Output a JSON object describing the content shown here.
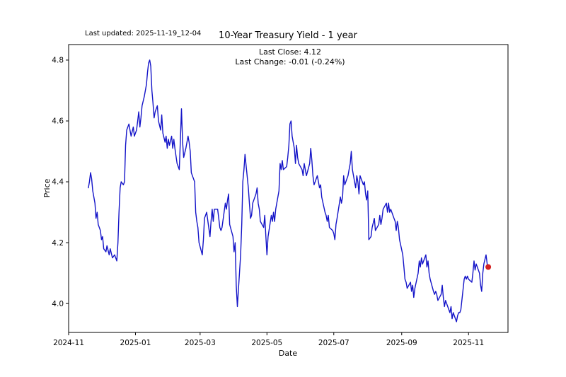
{
  "figure": {
    "last_updated": "Last updated: 2025-11-19_12-04",
    "title": "10-Year Treasury Yield - 1 year",
    "annotation_line1": "Last Close: 4.12",
    "annotation_line2": "Last Change: -0.01 (-0.24%)"
  },
  "chart_data": {
    "type": "line",
    "title": "10-Year Treasury Yield - 1 year",
    "xlabel": "Date",
    "ylabel": "Price",
    "grid": false,
    "legend": "none",
    "x_axis": {
      "unit": "days since 2024-11-01",
      "min": 0,
      "max": 401,
      "ticks": [
        {
          "pos": 0,
          "label": "2024-11"
        },
        {
          "pos": 61,
          "label": "2025-01"
        },
        {
          "pos": 120,
          "label": "2025-03"
        },
        {
          "pos": 181,
          "label": "2025-05"
        },
        {
          "pos": 242,
          "label": "2025-07"
        },
        {
          "pos": 304,
          "label": "2025-09"
        },
        {
          "pos": 365,
          "label": "2025-11"
        }
      ]
    },
    "y_axis": {
      "min": 3.905,
      "max": 4.851,
      "ticks": [
        {
          "value": 4.0,
          "label": "4.0"
        },
        {
          "value": 4.2,
          "label": "4.2"
        },
        {
          "value": 4.4,
          "label": "4.4"
        },
        {
          "value": 4.6,
          "label": "4.6"
        },
        {
          "value": 4.8,
          "label": "4.8"
        }
      ]
    },
    "colors": {
      "line": "#1414c8",
      "marker": "#d42020",
      "spine": "#000000",
      "text": "#000000",
      "background": "#ffffff"
    },
    "last_close": "4.12",
    "last_change": "-0.01 (-0.24%)",
    "series": [
      {
        "name": "10-Year Treasury Yield",
        "points": [
          [
            18,
            4.38
          ],
          [
            19,
            4.4
          ],
          [
            20,
            4.43
          ],
          [
            21,
            4.41
          ],
          [
            22,
            4.37
          ],
          [
            24,
            4.33
          ],
          [
            25,
            4.28
          ],
          [
            26,
            4.3
          ],
          [
            27,
            4.26
          ],
          [
            29,
            4.24
          ],
          [
            30,
            4.21
          ],
          [
            31,
            4.22
          ],
          [
            32,
            4.18
          ],
          [
            34,
            4.17
          ],
          [
            35,
            4.19
          ],
          [
            37,
            4.16
          ],
          [
            38,
            4.18
          ],
          [
            40,
            4.15
          ],
          [
            42,
            4.16
          ],
          [
            44,
            4.14
          ],
          [
            45,
            4.2
          ],
          [
            46,
            4.3
          ],
          [
            47,
            4.38
          ],
          [
            48,
            4.4
          ],
          [
            50,
            4.39
          ],
          [
            51,
            4.4
          ],
          [
            52,
            4.52
          ],
          [
            53,
            4.57
          ],
          [
            55,
            4.59
          ],
          [
            56,
            4.57
          ],
          [
            57,
            4.55
          ],
          [
            59,
            4.58
          ],
          [
            60,
            4.55
          ],
          [
            62,
            4.57
          ],
          [
            63,
            4.6
          ],
          [
            64,
            4.63
          ],
          [
            65,
            4.58
          ],
          [
            66,
            4.61
          ],
          [
            67,
            4.65
          ],
          [
            69,
            4.68
          ],
          [
            71,
            4.72
          ],
          [
            72,
            4.76
          ],
          [
            73,
            4.79
          ],
          [
            74,
            4.8
          ],
          [
            75,
            4.78
          ],
          [
            76,
            4.7
          ],
          [
            77,
            4.66
          ],
          [
            78,
            4.61
          ],
          [
            79,
            4.63
          ],
          [
            81,
            4.65
          ],
          [
            82,
            4.6
          ],
          [
            84,
            4.57
          ],
          [
            85,
            4.62
          ],
          [
            86,
            4.56
          ],
          [
            88,
            4.53
          ],
          [
            89,
            4.55
          ],
          [
            90,
            4.51
          ],
          [
            91,
            4.54
          ],
          [
            92,
            4.52
          ],
          [
            94,
            4.55
          ],
          [
            95,
            4.51
          ],
          [
            96,
            4.54
          ],
          [
            97,
            4.51
          ],
          [
            99,
            4.46
          ],
          [
            101,
            4.44
          ],
          [
            102,
            4.54
          ],
          [
            103,
            4.64
          ],
          [
            104,
            4.53
          ],
          [
            105,
            4.48
          ],
          [
            107,
            4.51
          ],
          [
            109,
            4.55
          ],
          [
            110,
            4.53
          ],
          [
            111,
            4.5
          ],
          [
            112,
            4.43
          ],
          [
            114,
            4.41
          ],
          [
            115,
            4.4
          ],
          [
            116,
            4.3
          ],
          [
            117,
            4.27
          ],
          [
            118,
            4.25
          ],
          [
            119,
            4.2
          ],
          [
            122,
            4.16
          ],
          [
            123,
            4.21
          ],
          [
            124,
            4.28
          ],
          [
            126,
            4.3
          ],
          [
            129,
            4.22
          ],
          [
            130,
            4.27
          ],
          [
            131,
            4.31
          ],
          [
            132,
            4.27
          ],
          [
            133,
            4.31
          ],
          [
            136,
            4.31
          ],
          [
            137,
            4.28
          ],
          [
            138,
            4.25
          ],
          [
            139,
            4.24
          ],
          [
            140,
            4.25
          ],
          [
            143,
            4.33
          ],
          [
            144,
            4.31
          ],
          [
            145,
            4.34
          ],
          [
            146,
            4.36
          ],
          [
            147,
            4.26
          ],
          [
            150,
            4.22
          ],
          [
            151,
            4.17
          ],
          [
            152,
            4.2
          ],
          [
            153,
            4.06
          ],
          [
            154,
            3.99
          ],
          [
            157,
            4.16
          ],
          [
            158,
            4.26
          ],
          [
            159,
            4.4
          ],
          [
            160,
            4.44
          ],
          [
            161,
            4.49
          ],
          [
            164,
            4.38
          ],
          [
            165,
            4.33
          ],
          [
            166,
            4.28
          ],
          [
            167,
            4.29
          ],
          [
            168,
            4.33
          ],
          [
            171,
            4.36
          ],
          [
            172,
            4.38
          ],
          [
            173,
            4.33
          ],
          [
            174,
            4.31
          ],
          [
            175,
            4.27
          ],
          [
            178,
            4.25
          ],
          [
            179,
            4.29
          ],
          [
            180,
            4.22
          ],
          [
            181,
            4.16
          ],
          [
            182,
            4.22
          ],
          [
            185,
            4.29
          ],
          [
            186,
            4.27
          ],
          [
            187,
            4.3
          ],
          [
            188,
            4.27
          ],
          [
            189,
            4.31
          ],
          [
            192,
            4.37
          ],
          [
            193,
            4.46
          ],
          [
            194,
            4.44
          ],
          [
            195,
            4.47
          ],
          [
            196,
            4.44
          ],
          [
            199,
            4.45
          ],
          [
            200,
            4.48
          ],
          [
            201,
            4.52
          ],
          [
            202,
            4.59
          ],
          [
            203,
            4.6
          ],
          [
            204,
            4.55
          ],
          [
            206,
            4.51
          ],
          [
            207,
            4.46
          ],
          [
            208,
            4.52
          ],
          [
            209,
            4.48
          ],
          [
            210,
            4.46
          ],
          [
            213,
            4.44
          ],
          [
            214,
            4.42
          ],
          [
            215,
            4.46
          ],
          [
            216,
            4.44
          ],
          [
            217,
            4.42
          ],
          [
            220,
            4.46
          ],
          [
            221,
            4.51
          ],
          [
            222,
            4.47
          ],
          [
            223,
            4.42
          ],
          [
            224,
            4.39
          ],
          [
            227,
            4.42
          ],
          [
            228,
            4.4
          ],
          [
            229,
            4.38
          ],
          [
            230,
            4.39
          ],
          [
            231,
            4.35
          ],
          [
            234,
            4.3
          ],
          [
            235,
            4.29
          ],
          [
            236,
            4.27
          ],
          [
            237,
            4.29
          ],
          [
            238,
            4.25
          ],
          [
            241,
            4.24
          ],
          [
            242,
            4.23
          ],
          [
            243,
            4.21
          ],
          [
            244,
            4.26
          ],
          [
            245,
            4.28
          ],
          [
            248,
            4.35
          ],
          [
            249,
            4.33
          ],
          [
            250,
            4.35
          ],
          [
            251,
            4.42
          ],
          [
            252,
            4.39
          ],
          [
            255,
            4.42
          ],
          [
            256,
            4.44
          ],
          [
            257,
            4.46
          ],
          [
            258,
            4.5
          ],
          [
            259,
            4.44
          ],
          [
            262,
            4.38
          ],
          [
            263,
            4.42
          ],
          [
            264,
            4.4
          ],
          [
            265,
            4.36
          ],
          [
            266,
            4.42
          ],
          [
            269,
            4.39
          ],
          [
            270,
            4.4
          ],
          [
            271,
            4.36
          ],
          [
            272,
            4.34
          ],
          [
            273,
            4.37
          ],
          [
            274,
            4.21
          ],
          [
            276,
            4.22
          ],
          [
            277,
            4.25
          ],
          [
            279,
            4.28
          ],
          [
            280,
            4.24
          ],
          [
            283,
            4.26
          ],
          [
            284,
            4.29
          ],
          [
            285,
            4.26
          ],
          [
            286,
            4.28
          ],
          [
            287,
            4.31
          ],
          [
            290,
            4.33
          ],
          [
            291,
            4.3
          ],
          [
            292,
            4.33
          ],
          [
            293,
            4.3
          ],
          [
            294,
            4.31
          ],
          [
            297,
            4.28
          ],
          [
            298,
            4.27
          ],
          [
            299,
            4.24
          ],
          [
            300,
            4.27
          ],
          [
            301,
            4.25
          ],
          [
            302,
            4.21
          ],
          [
            305,
            4.16
          ],
          [
            306,
            4.12
          ],
          [
            307,
            4.08
          ],
          [
            308,
            4.07
          ],
          [
            309,
            4.05
          ],
          [
            312,
            4.07
          ],
          [
            313,
            4.04
          ],
          [
            314,
            4.06
          ],
          [
            315,
            4.02
          ],
          [
            316,
            4.05
          ],
          [
            319,
            4.1
          ],
          [
            320,
            4.14
          ],
          [
            321,
            4.12
          ],
          [
            322,
            4.15
          ],
          [
            323,
            4.13
          ],
          [
            326,
            4.16
          ],
          [
            327,
            4.12
          ],
          [
            328,
            4.14
          ],
          [
            329,
            4.1
          ],
          [
            330,
            4.08
          ],
          [
            333,
            4.04
          ],
          [
            334,
            4.03
          ],
          [
            335,
            4.04
          ],
          [
            336,
            4.03
          ],
          [
            337,
            4.01
          ],
          [
            340,
            4.03
          ],
          [
            341,
            4.06
          ],
          [
            342,
            4.02
          ],
          [
            343,
            3.99
          ],
          [
            344,
            4.01
          ],
          [
            347,
            3.98
          ],
          [
            348,
            3.97
          ],
          [
            349,
            3.99
          ],
          [
            350,
            3.95
          ],
          [
            351,
            3.97
          ],
          [
            354,
            3.94
          ],
          [
            355,
            3.96
          ],
          [
            356,
            3.97
          ],
          [
            357,
            3.97
          ],
          [
            358,
            3.98
          ],
          [
            361,
            4.08
          ],
          [
            362,
            4.09
          ],
          [
            363,
            4.08
          ],
          [
            364,
            4.09
          ],
          [
            365,
            4.08
          ],
          [
            368,
            4.07
          ],
          [
            369,
            4.1
          ],
          [
            370,
            4.14
          ],
          [
            371,
            4.11
          ],
          [
            372,
            4.13
          ],
          [
            375,
            4.1
          ],
          [
            376,
            4.06
          ],
          [
            377,
            4.04
          ],
          [
            378,
            4.1
          ],
          [
            379,
            4.13
          ],
          [
            381,
            4.16
          ],
          [
            382,
            4.13
          ],
          [
            383,
            4.12
          ]
        ]
      }
    ],
    "last_point": [
      383,
      4.12
    ]
  }
}
